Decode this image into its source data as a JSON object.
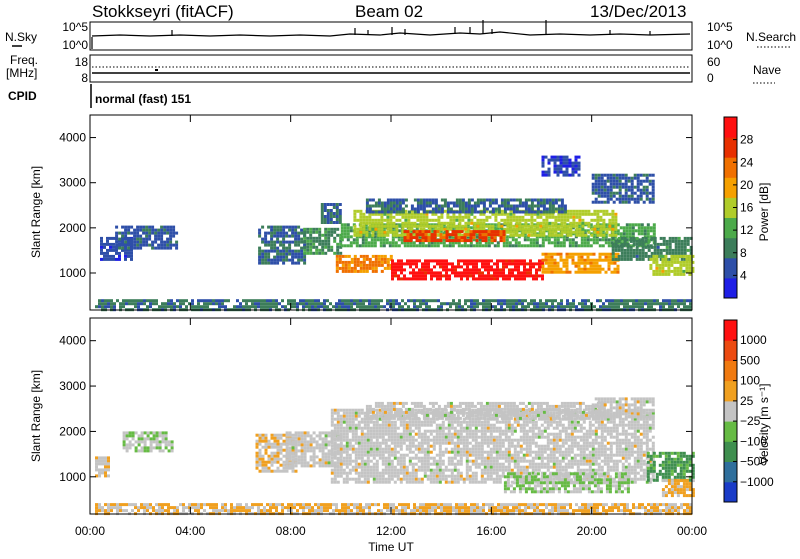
{
  "header": {
    "station": "Stokkseyri (fitACF)",
    "beam": "Beam 02",
    "date": "13/Dec/2013"
  },
  "noise_panel": {
    "left_label": "N.Sky",
    "left_ticks": [
      "10^5",
      "10^0"
    ],
    "right_ticks": [
      "10^5",
      "10^0"
    ],
    "right_label": "N.Search"
  },
  "freq_panel": {
    "label_line1": "Freq.",
    "label_line2": "[MHz]",
    "left_ticks": [
      "18",
      "8"
    ],
    "right_ticks": [
      "60",
      "0"
    ],
    "right_label": "Nave"
  },
  "cpid_panel": {
    "label": "CPID",
    "program": "normal (fast) 151"
  },
  "colors": {
    "power_scale": [
      "#1f1fe6",
      "#2e4fa8",
      "#3c7d5a",
      "#4caa4a",
      "#b0cc2a",
      "#f5a000",
      "#f07000",
      "#e83000",
      "#ff1010"
    ],
    "velocity_scale": [
      "#1a3cc8",
      "#2f6f9c",
      "#3f8f4f",
      "#66bb44",
      "#c4c4c4",
      "#f0a020",
      "#f07a10",
      "#ec4a10",
      "#ff1010"
    ],
    "ground_scatter": "#bcbcbc"
  },
  "chart_data": [
    {
      "type": "heatmap",
      "title": "",
      "xlabel": "Time UT",
      "ylabel": "Slant Range [km]",
      "x_ticks": [
        "00:00",
        "04:00",
        "08:00",
        "12:00",
        "16:00",
        "20:00",
        "00:00"
      ],
      "xlim_hours": [
        0,
        24
      ],
      "y_ticks": [
        1000,
        2000,
        3000,
        4000
      ],
      "ylim_km": [
        180,
        4500
      ],
      "colorbar": {
        "label": "Power [dB]",
        "tick_labels": [
          "28",
          "24",
          "20",
          "16",
          "12",
          "8",
          "4"
        ],
        "range": [
          0,
          32
        ]
      },
      "regions": [
        {
          "t": [
            0.2,
            24.0
          ],
          "r": [
            200,
            420
          ],
          "value": 8
        },
        {
          "t": [
            0.4,
            1.6
          ],
          "r": [
            1300,
            1800
          ],
          "value": 5
        },
        {
          "t": [
            1.0,
            3.4
          ],
          "r": [
            1550,
            2050
          ],
          "value": 6
        },
        {
          "t": [
            6.7,
            8.5
          ],
          "r": [
            1200,
            2050
          ],
          "value": 7
        },
        {
          "t": [
            8.5,
            10.0
          ],
          "r": [
            1450,
            2000
          ],
          "value": 10
        },
        {
          "t": [
            9.2,
            10.0
          ],
          "r": [
            2150,
            2550
          ],
          "value": 7
        },
        {
          "t": [
            10.0,
            22.5
          ],
          "r": [
            1600,
            2100
          ],
          "value": 12
        },
        {
          "t": [
            10.5,
            21.0
          ],
          "r": [
            1850,
            2400
          ],
          "value": 16
        },
        {
          "t": [
            11.0,
            19.0
          ],
          "r": [
            2350,
            2650
          ],
          "value": 7
        },
        {
          "t": [
            9.8,
            12.0
          ],
          "r": [
            1050,
            1400
          ],
          "value": 22
        },
        {
          "t": [
            12.0,
            18.0
          ],
          "r": [
            850,
            1300
          ],
          "value": 30
        },
        {
          "t": [
            12.5,
            16.5
          ],
          "r": [
            1700,
            1950
          ],
          "value": 26
        },
        {
          "t": [
            18.0,
            21.0
          ],
          "r": [
            1050,
            1450
          ],
          "value": 20
        },
        {
          "t": [
            20.8,
            24.0
          ],
          "r": [
            1300,
            1800
          ],
          "value": 9
        },
        {
          "t": [
            22.3,
            24.0
          ],
          "r": [
            950,
            1400
          ],
          "value": 16
        },
        {
          "t": [
            20.0,
            22.5
          ],
          "r": [
            2600,
            3200
          ],
          "value": 6
        },
        {
          "t": [
            18.0,
            19.5
          ],
          "r": [
            3150,
            3600
          ],
          "value": 4
        }
      ]
    },
    {
      "type": "heatmap",
      "title": "",
      "xlabel": "Time UT",
      "ylabel": "Slant Range [km]",
      "x_ticks": [
        "00:00",
        "04:00",
        "08:00",
        "12:00",
        "16:00",
        "20:00",
        "00:00"
      ],
      "xlim_hours": [
        0,
        24
      ],
      "y_ticks": [
        1000,
        2000,
        3000,
        4000
      ],
      "ylim_km": [
        180,
        4500
      ],
      "colorbar": {
        "label": "Velocity [m s⁻¹]",
        "tick_labels": [
          "1000",
          "500",
          "100",
          "25",
          "−25",
          "−100",
          "−500",
          "−1000"
        ],
        "range": [
          -1250,
          1250
        ]
      },
      "regions": [
        {
          "t": [
            0.2,
            24.0
          ],
          "r": [
            200,
            420
          ],
          "value": 150
        },
        {
          "t": [
            0.2,
            0.7
          ],
          "r": [
            1050,
            1450
          ],
          "value": 80
        },
        {
          "t": [
            1.3,
            3.3
          ],
          "r": [
            1550,
            2000
          ],
          "value": -120
        },
        {
          "t": [
            6.6,
            8.2
          ],
          "r": [
            1150,
            1950
          ],
          "value": 120
        },
        {
          "t": [
            7.8,
            10.0
          ],
          "r": [
            1250,
            2000
          ],
          "value": 0
        },
        {
          "t": [
            9.6,
            22.5
          ],
          "r": [
            900,
            2500
          ],
          "value": 0
        },
        {
          "t": [
            11.0,
            20.5
          ],
          "r": [
            2300,
            2650
          ],
          "value": 0
        },
        {
          "t": [
            20.0,
            22.4
          ],
          "r": [
            2350,
            2750
          ],
          "value": 0
        },
        {
          "t": [
            16.5,
            21.5
          ],
          "r": [
            650,
            1100
          ],
          "value": -150
        },
        {
          "t": [
            22.2,
            24.0
          ],
          "r": [
            950,
            1550
          ],
          "value": -500
        },
        {
          "t": [
            22.8,
            24.0
          ],
          "r": [
            600,
            950
          ],
          "value": 200
        }
      ]
    }
  ]
}
